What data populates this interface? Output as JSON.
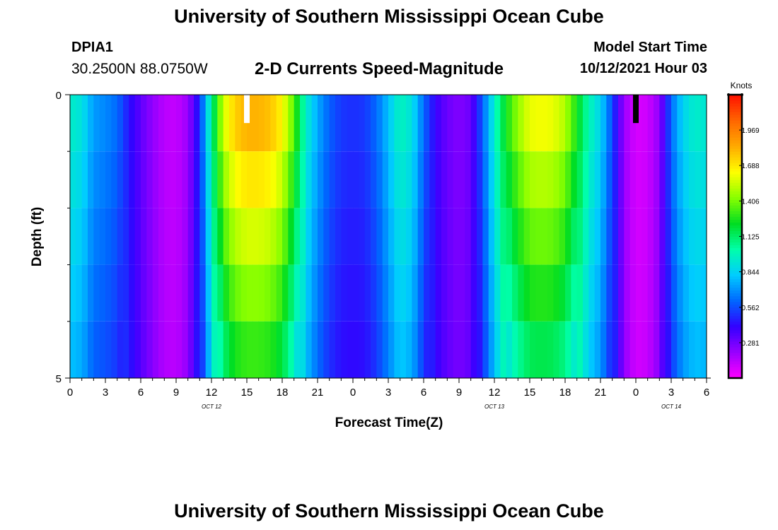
{
  "header": {
    "title": "University of Southern Mississippi Ocean Cube",
    "station_id": "DPIA1",
    "station_coords": "30.2500N  88.0750W",
    "product_title": "2-D Currents Speed-Magnitude",
    "model_start_label": "Model Start Time",
    "model_start_value": "10/12/2021 Hour 03"
  },
  "footer": {
    "title": "University of Southern Mississippi Ocean Cube"
  },
  "chart_data": {
    "type": "heatmap",
    "title": "2-D Currents Speed-Magnitude",
    "xlabel": "Forecast Time(Z)",
    "ylabel": "Depth (ft)",
    "x_hours": [
      0,
      3,
      6,
      9,
      12,
      15,
      18,
      21,
      24,
      27,
      30,
      33,
      36,
      39,
      42,
      45,
      48,
      51,
      54
    ],
    "x_tick_labels": [
      "0",
      "3",
      "6",
      "9",
      "12",
      "15",
      "18",
      "21",
      "0",
      "3",
      "6",
      "9",
      "12",
      "15",
      "18",
      "21",
      "0",
      "3",
      "6"
    ],
    "date_labels": [
      {
        "text": "OCT 12",
        "hour": 12
      },
      {
        "text": "OCT 13",
        "hour": 36
      },
      {
        "text": "OCT 14",
        "hour": 51
      }
    ],
    "xlim": [
      0,
      54
    ],
    "y_tick_labels": [
      "0",
      "5"
    ],
    "ylim": [
      0,
      5
    ],
    "depth_levels": [
      0.5,
      1.5,
      2.5,
      3.5,
      4.5
    ],
    "colorbar": {
      "title": "Knots",
      "ticks": [
        "1.969",
        "1.688",
        "1.406",
        "1.125",
        "0.844",
        "0.562",
        "0.281"
      ],
      "tick_values": [
        1.969,
        1.688,
        1.406,
        1.125,
        0.844,
        0.562,
        0.281
      ],
      "range": [
        0,
        2.25
      ],
      "colors": [
        "#ff00ff",
        "#9900ff",
        "#3300ff",
        "#0066ff",
        "#00ccff",
        "#00ffaa",
        "#00dd22",
        "#88ff00",
        "#ffff00",
        "#ffaa00",
        "#ff6600",
        "#ff1100"
      ]
    },
    "hour_markers": [
      {
        "hour": 15,
        "color": "#ffffff"
      },
      {
        "hour": 48,
        "color": "#000000"
      }
    ],
    "speed_profile": [
      [
        0,
        0.95
      ],
      [
        1,
        0.9
      ],
      [
        2,
        0.72
      ],
      [
        3,
        0.68
      ],
      [
        4,
        0.62
      ],
      [
        5,
        0.45
      ],
      [
        6,
        0.32
      ],
      [
        7,
        0.22
      ],
      [
        8,
        0.14
      ],
      [
        9,
        0.12
      ],
      [
        10,
        0.2
      ],
      [
        11,
        0.5
      ],
      [
        12,
        1.05
      ],
      [
        13,
        1.55
      ],
      [
        14,
        1.75
      ],
      [
        15,
        1.82
      ],
      [
        16,
        1.82
      ],
      [
        17,
        1.78
      ],
      [
        18,
        1.65
      ],
      [
        19,
        1.35
      ],
      [
        20,
        0.95
      ],
      [
        21,
        0.75
      ],
      [
        22,
        0.6
      ],
      [
        23,
        0.52
      ],
      [
        24,
        0.5
      ],
      [
        25,
        0.52
      ],
      [
        26,
        0.62
      ],
      [
        27,
        0.8
      ],
      [
        28,
        0.98
      ],
      [
        29,
        0.9
      ],
      [
        30,
        0.62
      ],
      [
        31,
        0.4
      ],
      [
        32,
        0.3
      ],
      [
        33,
        0.25
      ],
      [
        34,
        0.3
      ],
      [
        35,
        0.6
      ],
      [
        36,
        0.95
      ],
      [
        37,
        1.25
      ],
      [
        38,
        1.45
      ],
      [
        39,
        1.6
      ],
      [
        40,
        1.62
      ],
      [
        41,
        1.6
      ],
      [
        42,
        1.5
      ],
      [
        43,
        1.25
      ],
      [
        44,
        1.0
      ],
      [
        45,
        0.85
      ],
      [
        46,
        0.55
      ],
      [
        47,
        0.2
      ],
      [
        48,
        0.08
      ],
      [
        49,
        0.1
      ],
      [
        50,
        0.22
      ],
      [
        51,
        0.62
      ],
      [
        52,
        0.85
      ],
      [
        53,
        0.95
      ],
      [
        54,
        0.92
      ]
    ]
  }
}
